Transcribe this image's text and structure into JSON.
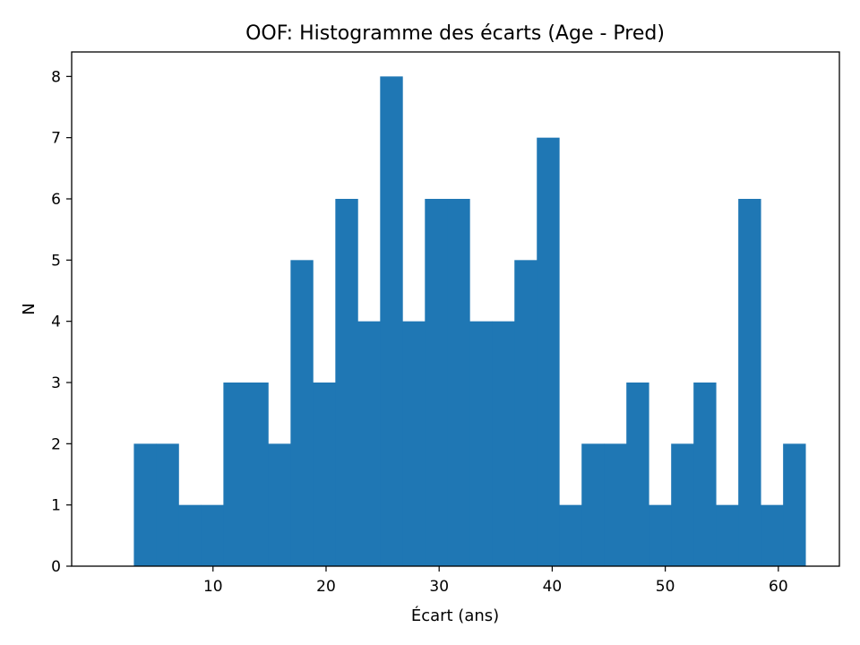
{
  "chart_data": {
    "type": "bar",
    "title": "OOF: Histogramme des écarts (Age - Pred)",
    "xlabel": "Écart (ans)",
    "ylabel": "N",
    "bin_start": 3.0,
    "bin_width": 1.98,
    "values": [
      2,
      2,
      1,
      1,
      3,
      3,
      2,
      5,
      3,
      6,
      4,
      8,
      4,
      6,
      6,
      4,
      4,
      5,
      7,
      1,
      2,
      2,
      3,
      1,
      2,
      3,
      1,
      6,
      1,
      2
    ],
    "xlim": [
      -2.5,
      65.4
    ],
    "ylim": [
      0,
      8.4
    ],
    "x_ticks": [
      10,
      20,
      30,
      40,
      50,
      60
    ],
    "y_ticks": [
      0,
      1,
      2,
      3,
      4,
      5,
      6,
      7,
      8
    ],
    "bar_color": "#1f77b4",
    "grid": false,
    "legend": "none"
  }
}
